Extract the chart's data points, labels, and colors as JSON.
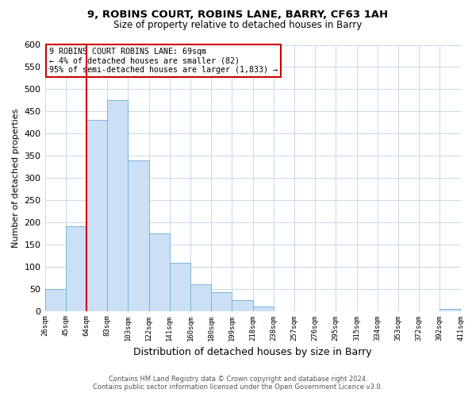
{
  "title": "9, ROBINS COURT, ROBINS LANE, BARRY, CF63 1AH",
  "subtitle": "Size of property relative to detached houses in Barry",
  "xlabel": "Distribution of detached houses by size in Barry",
  "ylabel": "Number of detached properties",
  "bin_labels": [
    "26sqm",
    "45sqm",
    "64sqm",
    "83sqm",
    "103sqm",
    "122sqm",
    "141sqm",
    "160sqm",
    "180sqm",
    "199sqm",
    "218sqm",
    "238sqm",
    "257sqm",
    "276sqm",
    "295sqm",
    "315sqm",
    "334sqm",
    "353sqm",
    "372sqm",
    "392sqm",
    "411sqm"
  ],
  "bar_heights": [
    50,
    190,
    430,
    475,
    340,
    175,
    108,
    60,
    43,
    25,
    10,
    0,
    0,
    0,
    0,
    0,
    0,
    0,
    0,
    5
  ],
  "bar_color": "#cce0f5",
  "bar_edge_color": "#6baed6",
  "ylim": [
    0,
    600
  ],
  "yticks": [
    0,
    50,
    100,
    150,
    200,
    250,
    300,
    350,
    400,
    450,
    500,
    550,
    600
  ],
  "vline_x": 2.0,
  "vline_color": "#cc0000",
  "annotation_text": "9 ROBINS COURT ROBINS LANE: 69sqm\n← 4% of detached houses are smaller (82)\n95% of semi-detached houses are larger (1,833) →",
  "annotation_box_color": "#cc0000",
  "footer_line1": "Contains HM Land Registry data © Crown copyright and database right 2024.",
  "footer_line2": "Contains public sector information licensed under the Open Government Licence v3.0.",
  "bg_color": "#ffffff",
  "grid_color": "#c8d8ec"
}
